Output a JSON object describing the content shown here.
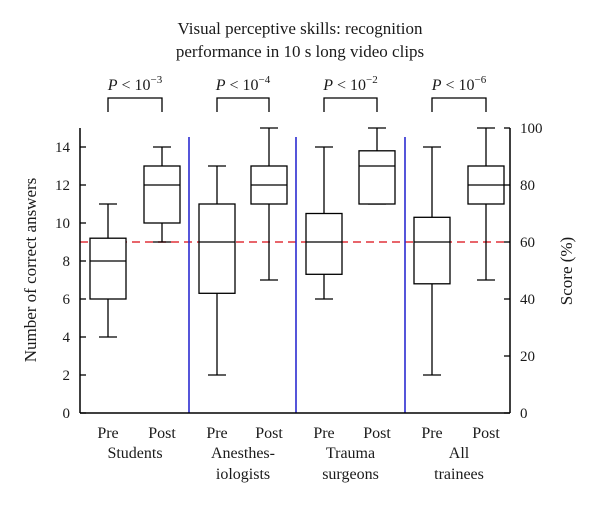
{
  "chart_data": {
    "type": "box",
    "title_lines": [
      "Visual perceptive skills: recognition",
      "performance in 10 s long video clips"
    ],
    "ylabel_left": "Number of correct answers",
    "ylabel_right": "Score (%)",
    "ylim_left": [
      0,
      15
    ],
    "ylim_right": [
      0,
      100
    ],
    "yticks_left": [
      0,
      2,
      4,
      6,
      8,
      10,
      12,
      14
    ],
    "yticks_right": [
      0,
      20,
      40,
      60,
      80,
      100
    ],
    "threshold": {
      "value": 9,
      "color": "#e0323a",
      "style": "dashed"
    },
    "separator_color": "#2b2bd0",
    "groups": [
      {
        "name_lines": [
          "Students"
        ],
        "p_value": {
          "prefix": "P",
          "operator": "<",
          "base": "10",
          "exponent": "−3"
        },
        "boxes": [
          {
            "label": "Pre",
            "min": 4,
            "q1": 6,
            "median": 8,
            "q3": 9.2,
            "max": 11
          },
          {
            "label": "Post",
            "min": 9,
            "q1": 10,
            "median": 12,
            "q3": 13,
            "max": 14
          }
        ]
      },
      {
        "name_lines": [
          "Anesthes-",
          "iologists"
        ],
        "p_value": {
          "prefix": "P",
          "operator": "<",
          "base": "10",
          "exponent": "−4"
        },
        "boxes": [
          {
            "label": "Pre",
            "min": 2,
            "q1": 6.3,
            "median": 9,
            "q3": 11,
            "max": 13
          },
          {
            "label": "Post",
            "min": 7,
            "q1": 11,
            "median": 12,
            "q3": 13,
            "max": 15
          }
        ]
      },
      {
        "name_lines": [
          "Trauma",
          "surgeons"
        ],
        "p_value": {
          "prefix": "P",
          "operator": "<",
          "base": "10",
          "exponent": "−2"
        },
        "boxes": [
          {
            "label": "Pre",
            "min": 6,
            "q1": 7.3,
            "median": 9,
            "q3": 10.5,
            "max": 14
          },
          {
            "label": "Post",
            "min": 11,
            "q1": 11,
            "median": 13,
            "q3": 13.8,
            "max": 15
          }
        ]
      },
      {
        "name_lines": [
          "All",
          "trainees"
        ],
        "p_value": {
          "prefix": "P",
          "operator": "<",
          "base": "10",
          "exponent": "−6"
        },
        "boxes": [
          {
            "label": "Pre",
            "min": 2,
            "q1": 6.8,
            "median": 9,
            "q3": 10.3,
            "max": 14
          },
          {
            "label": "Post",
            "min": 7,
            "q1": 11,
            "median": 12,
            "q3": 13,
            "max": 15
          }
        ]
      }
    ]
  }
}
